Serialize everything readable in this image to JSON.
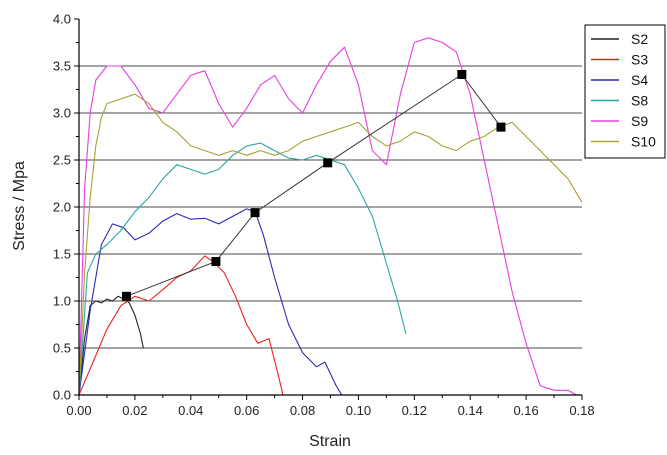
{
  "chart_data": {
    "type": "line",
    "title": "",
    "xlabel": "Strain",
    "ylabel": "Stress / Mpa",
    "xlim": [
      0,
      0.18
    ],
    "ylim": [
      0,
      4
    ],
    "grid": "horizontal",
    "legend_placement": "top-right",
    "x_ticks": [
      "0.00",
      "0.02",
      "0.04",
      "0.06",
      "0.08",
      "0.10",
      "0.12",
      "0.14",
      "0.16",
      "0.18"
    ],
    "y_ticks": [
      "0.0",
      "0.5",
      "1.0",
      "1.5",
      "2.0",
      "2.5",
      "3.0",
      "3.5",
      "4.0"
    ],
    "series": [
      {
        "name": "S2",
        "color": "#222222",
        "x": [
          0,
          0.002,
          0.004,
          0.006,
          0.008,
          0.01,
          0.012,
          0.014,
          0.016,
          0.018,
          0.02,
          0.022,
          0.023
        ],
        "y": [
          0,
          0.6,
          0.95,
          1.0,
          0.98,
          1.02,
          1.0,
          1.05,
          1.02,
          0.98,
          0.85,
          0.65,
          0.5
        ]
      },
      {
        "name": "S3",
        "color": "#e8231c",
        "x": [
          0,
          0.005,
          0.01,
          0.015,
          0.02,
          0.025,
          0.03,
          0.035,
          0.04,
          0.045,
          0.048,
          0.052,
          0.056,
          0.06,
          0.064,
          0.068,
          0.071,
          0.073
        ],
        "y": [
          0,
          0.35,
          0.7,
          0.95,
          1.05,
          1.0,
          1.12,
          1.25,
          1.32,
          1.48,
          1.42,
          1.3,
          1.05,
          0.75,
          0.55,
          0.6,
          0.25,
          0
        ]
      },
      {
        "name": "S4",
        "color": "#2b2bb8",
        "x": [
          0,
          0.004,
          0.008,
          0.012,
          0.016,
          0.02,
          0.025,
          0.03,
          0.035,
          0.04,
          0.045,
          0.05,
          0.055,
          0.06,
          0.063,
          0.066,
          0.07,
          0.075,
          0.08,
          0.085,
          0.088,
          0.092,
          0.094
        ],
        "y": [
          0,
          0.9,
          1.6,
          1.82,
          1.78,
          1.65,
          1.72,
          1.85,
          1.93,
          1.87,
          1.88,
          1.82,
          1.9,
          1.98,
          1.95,
          1.7,
          1.25,
          0.75,
          0.45,
          0.3,
          0.35,
          0.1,
          0
        ]
      },
      {
        "name": "S8",
        "color": "#2aa6a1",
        "x": [
          0,
          0.003,
          0.006,
          0.01,
          0.015,
          0.02,
          0.025,
          0.03,
          0.035,
          0.04,
          0.045,
          0.05,
          0.055,
          0.06,
          0.065,
          0.07,
          0.075,
          0.08,
          0.085,
          0.09,
          0.095,
          0.1,
          0.105,
          0.11,
          0.114,
          0.117
        ],
        "y": [
          0,
          1.3,
          1.5,
          1.6,
          1.75,
          1.95,
          2.1,
          2.3,
          2.45,
          2.4,
          2.35,
          2.4,
          2.55,
          2.65,
          2.68,
          2.6,
          2.52,
          2.5,
          2.55,
          2.5,
          2.45,
          2.2,
          1.9,
          1.4,
          1.0,
          0.65
        ]
      },
      {
        "name": "S9",
        "color": "#e83ee0",
        "x": [
          0,
          0.002,
          0.004,
          0.006,
          0.01,
          0.015,
          0.02,
          0.025,
          0.03,
          0.035,
          0.04,
          0.045,
          0.05,
          0.055,
          0.06,
          0.065,
          0.07,
          0.075,
          0.08,
          0.085,
          0.09,
          0.095,
          0.1,
          0.105,
          0.11,
          0.115,
          0.12,
          0.125,
          0.13,
          0.135,
          0.14,
          0.145,
          0.15,
          0.155,
          0.16,
          0.165,
          0.17,
          0.175,
          0.178
        ],
        "y": [
          0,
          2.2,
          3.0,
          3.35,
          3.5,
          3.5,
          3.3,
          3.05,
          3.0,
          3.2,
          3.4,
          3.45,
          3.1,
          2.85,
          3.05,
          3.3,
          3.4,
          3.15,
          3.0,
          3.3,
          3.55,
          3.7,
          3.3,
          2.6,
          2.45,
          3.2,
          3.75,
          3.8,
          3.75,
          3.65,
          3.2,
          2.5,
          1.8,
          1.1,
          0.55,
          0.1,
          0.05,
          0.05,
          0
        ]
      },
      {
        "name": "S10",
        "color": "#a9a133",
        "x": [
          0,
          0.002,
          0.004,
          0.006,
          0.008,
          0.01,
          0.015,
          0.02,
          0.025,
          0.03,
          0.035,
          0.04,
          0.045,
          0.05,
          0.055,
          0.06,
          0.065,
          0.07,
          0.075,
          0.08,
          0.085,
          0.09,
          0.095,
          0.1,
          0.105,
          0.11,
          0.115,
          0.12,
          0.125,
          0.13,
          0.135,
          0.14,
          0.145,
          0.15,
          0.155,
          0.16,
          0.165,
          0.17,
          0.175,
          0.18
        ],
        "y": [
          0,
          1.3,
          2.1,
          2.65,
          2.95,
          3.1,
          3.15,
          3.2,
          3.1,
          2.9,
          2.8,
          2.65,
          2.6,
          2.55,
          2.6,
          2.55,
          2.6,
          2.55,
          2.6,
          2.7,
          2.75,
          2.8,
          2.85,
          2.9,
          2.75,
          2.65,
          2.7,
          2.8,
          2.75,
          2.65,
          2.6,
          2.7,
          2.75,
          2.85,
          2.9,
          2.75,
          2.6,
          2.45,
          2.3,
          2.05
        ]
      }
    ],
    "markers": {
      "color": "#000000",
      "x": [
        0.017,
        0.049,
        0.063,
        0.089,
        0.137,
        0.151
      ],
      "y": [
        1.05,
        1.42,
        1.94,
        2.47,
        3.41,
        2.85
      ]
    }
  }
}
